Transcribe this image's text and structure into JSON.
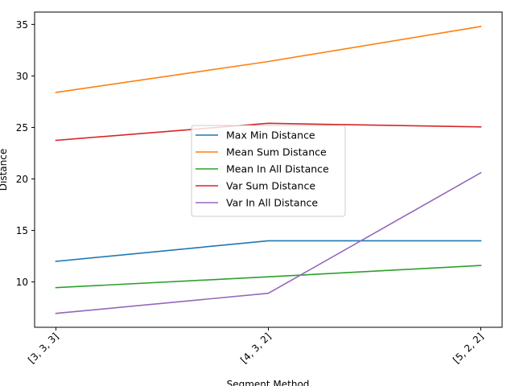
{
  "chart_data": {
    "type": "line",
    "categories": [
      "[3, 3, 3]",
      "[4, 3, 2]",
      "[5, 2, 2]"
    ],
    "xlabel": "Segment Method",
    "ylabel": "Distance",
    "ylim": [
      5.6,
      36.2
    ],
    "yticks": [
      10,
      15,
      20,
      25,
      30,
      35
    ],
    "grid": false,
    "legend_position": "center",
    "series": [
      {
        "name": "Max Min Distance",
        "color": "#1f77b4",
        "values": [
          12.0,
          14.0,
          14.0
        ]
      },
      {
        "name": "Mean Sum Distance",
        "color": "#ff7f0e",
        "values": [
          28.4,
          31.4,
          34.8
        ]
      },
      {
        "name": "Mean In All Distance",
        "color": "#2ca02c",
        "values": [
          9.45,
          10.5,
          11.6
        ]
      },
      {
        "name": "Var Sum Distance",
        "color": "#d62728",
        "values": [
          23.75,
          25.4,
          25.05
        ]
      },
      {
        "name": "Var In All Distance",
        "color": "#9467bd",
        "values": [
          6.95,
          8.9,
          20.6
        ]
      }
    ]
  }
}
